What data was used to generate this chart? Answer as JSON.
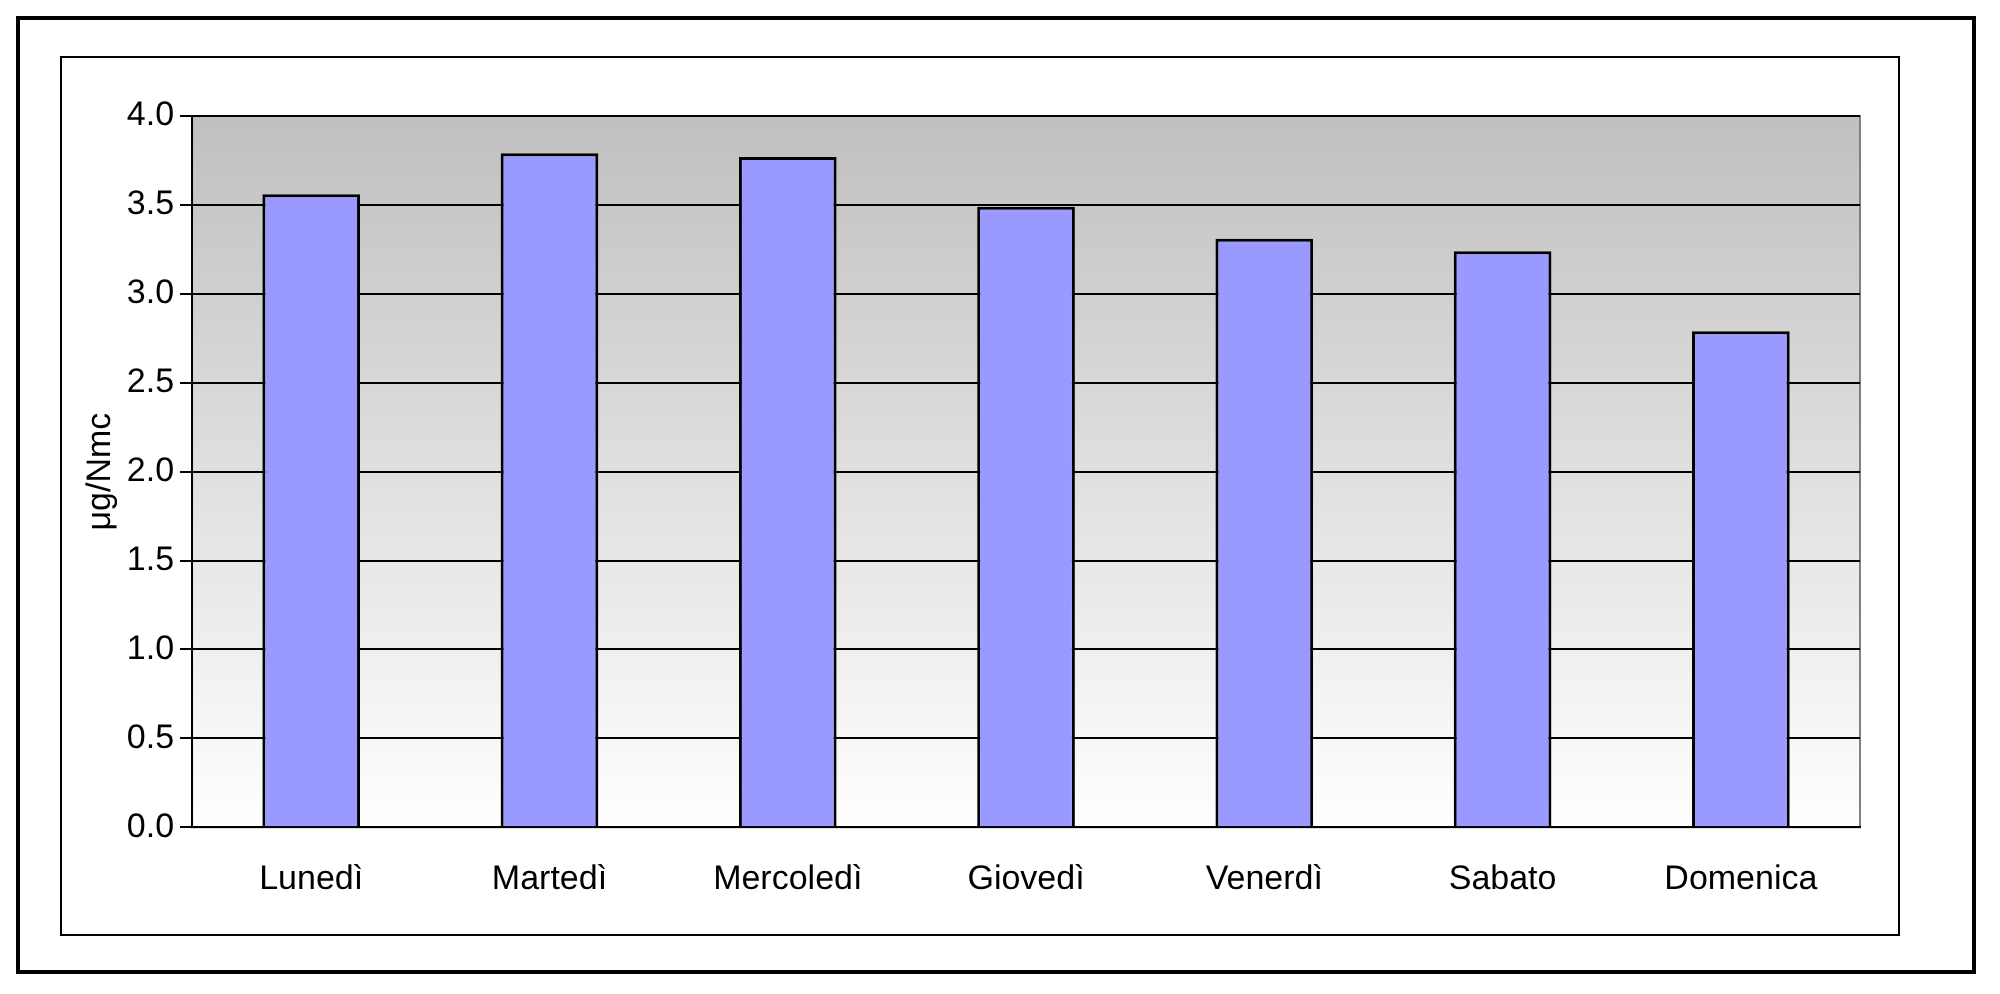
{
  "chart_data": {
    "type": "bar",
    "ylabel": "μg/Nmc",
    "categories": [
      "Lunedì",
      "Martedì",
      "Mercoledì",
      "Giovedì",
      "Venerdì",
      "Sabato",
      "Domenica"
    ],
    "values": [
      3.56,
      3.79,
      3.77,
      3.49,
      3.31,
      3.24,
      2.79
    ],
    "color": "#9999ff",
    "ylim": [
      0,
      4
    ],
    "yticks": [
      {
        "value": 0,
        "label": "0.0"
      },
      0.5,
      {
        "value": 1,
        "label": "1.0"
      },
      1.5,
      {
        "value": 2,
        "label": "2.0"
      },
      2.5,
      {
        "value": 3,
        "label": "3.0"
      },
      3.5,
      {
        "value": 4,
        "label": "4.0"
      }
    ],
    "grid": "y",
    "legend": false
  }
}
